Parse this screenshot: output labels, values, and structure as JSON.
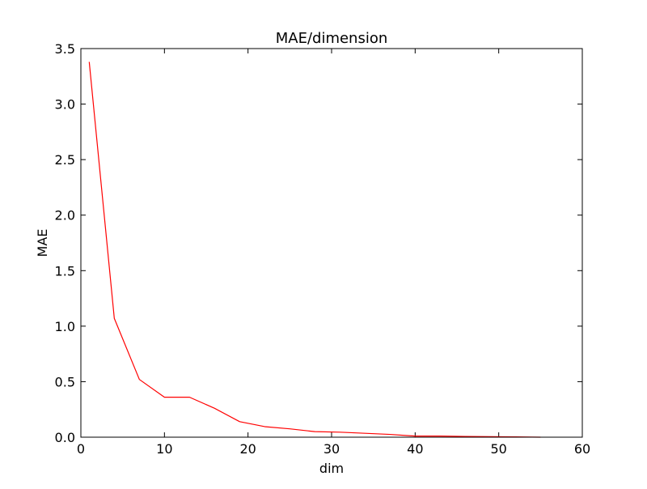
{
  "chart_data": {
    "type": "line",
    "title": "MAE/dimension",
    "xlabel": "dim",
    "ylabel": "MAE",
    "xlim": [
      0,
      60
    ],
    "ylim": [
      0.0,
      3.5
    ],
    "xticks": [
      "0",
      "10",
      "20",
      "30",
      "40",
      "50",
      "60"
    ],
    "yticks": [
      "0.0",
      "0.5",
      "1.0",
      "1.5",
      "2.0",
      "2.5",
      "3.0",
      "3.5"
    ],
    "grid": false,
    "legend": "none",
    "series": [
      {
        "color": "#ff0000",
        "x": [
          1,
          4,
          7,
          10,
          13,
          16,
          19,
          22,
          25,
          28,
          31,
          34,
          37,
          40,
          43,
          46,
          49,
          52,
          55
        ],
        "y": [
          3.38,
          1.07,
          0.52,
          0.36,
          0.36,
          0.26,
          0.14,
          0.095,
          0.075,
          0.05,
          0.045,
          0.035,
          0.025,
          0.01,
          0.01,
          0.007,
          0.005,
          0.003,
          0.0
        ]
      }
    ]
  }
}
